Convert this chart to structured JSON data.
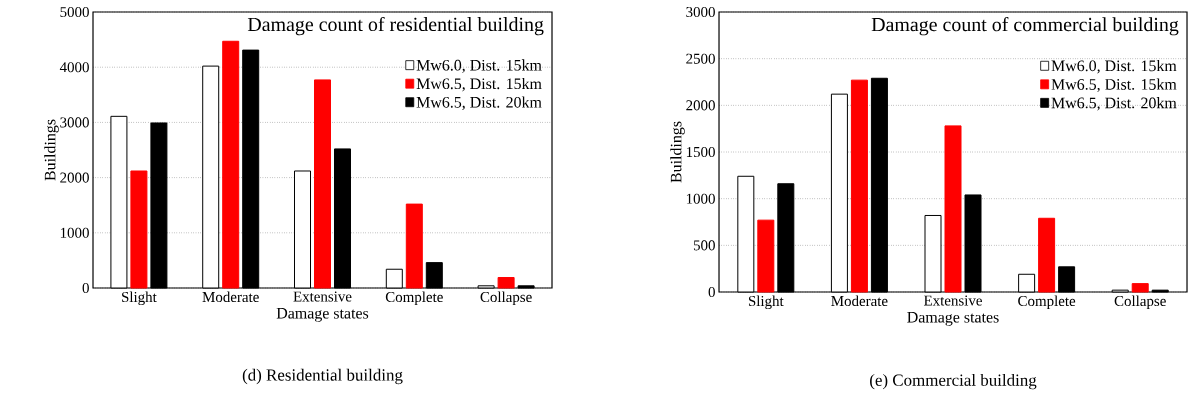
{
  "chart_data": [
    {
      "type": "bar",
      "title": "Damage count of residential building",
      "xlabel": "Damage states",
      "ylabel": "Buildings",
      "categories": [
        "Slight",
        "Moderate",
        "Extensive",
        "Complete",
        "Collapse"
      ],
      "series": [
        {
          "name": "Mw6.0, Dist. 15km",
          "color": "#ffffff",
          "values": [
            3110,
            4020,
            2120,
            340,
            40
          ]
        },
        {
          "name": "Mw6.5, Dist. 15km",
          "color": "#ff0000",
          "values": [
            2120,
            4470,
            3770,
            1520,
            190
          ]
        },
        {
          "name": "Mw6.5, Dist. 20km",
          "color": "#000000",
          "values": [
            2990,
            4310,
            2520,
            460,
            40
          ]
        }
      ],
      "ylim": [
        0,
        5000
      ],
      "yticks": [
        0,
        1000,
        2000,
        3000,
        4000,
        5000
      ],
      "grid": "y",
      "legend": "top right",
      "annotations": [
        "(d) Residential building"
      ]
    },
    {
      "type": "bar",
      "title": "Damage count of commercial building",
      "xlabel": "Damage states",
      "ylabel": "Buildings",
      "categories": [
        "Slight",
        "Moderate",
        "Extensive",
        "Complete",
        "Collapse"
      ],
      "series": [
        {
          "name": "Mw6.0, Dist. 15km",
          "color": "#ffffff",
          "values": [
            1240,
            2120,
            820,
            190,
            20
          ]
        },
        {
          "name": "Mw6.5, Dist. 15km",
          "color": "#ff0000",
          "values": [
            770,
            2270,
            1780,
            790,
            90
          ]
        },
        {
          "name": "Mw6.5, Dist. 20km",
          "color": "#000000",
          "values": [
            1160,
            2290,
            1040,
            270,
            20
          ]
        }
      ],
      "ylim": [
        0,
        3000
      ],
      "yticks": [
        0,
        500,
        1000,
        1500,
        2000,
        2500,
        3000
      ],
      "grid": "y",
      "legend": "top right",
      "annotations": [
        "(e) Commercial building"
      ]
    }
  ]
}
